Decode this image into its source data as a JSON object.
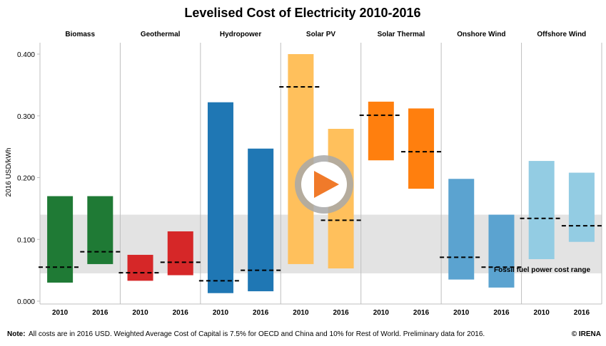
{
  "chart_data": {
    "type": "bar",
    "title": "Levelised Cost of Electricity 2010-2016",
    "ylabel": "2016 USD/kWh",
    "ylim": [
      0,
      0.42
    ],
    "yticks": [
      "0.000",
      "0.100",
      "0.200",
      "0.300",
      "0.400"
    ],
    "ytick_values": [
      0,
      0.1,
      0.2,
      0.3,
      0.4
    ],
    "band": {
      "min": 0.045,
      "max": 0.14,
      "label": "Fossil fuel power cost range"
    },
    "groups": [
      {
        "name": "Biomass",
        "color": "#1f7a35",
        "bars": [
          {
            "year": "2010",
            "min": 0.03,
            "max": 0.17,
            "avg": 0.055
          },
          {
            "year": "2016",
            "min": 0.06,
            "max": 0.17,
            "avg": 0.08
          }
        ]
      },
      {
        "name": "Geothermal",
        "color": "#d62728",
        "bars": [
          {
            "year": "2010",
            "min": 0.033,
            "max": 0.075,
            "avg": 0.046
          },
          {
            "year": "2016",
            "min": 0.042,
            "max": 0.113,
            "avg": 0.063
          }
        ]
      },
      {
        "name": "Hydropower",
        "color": "#1f77b4",
        "bars": [
          {
            "year": "2010",
            "min": 0.013,
            "max": 0.322,
            "avg": 0.033
          },
          {
            "year": "2016",
            "min": 0.016,
            "max": 0.247,
            "avg": 0.05
          }
        ]
      },
      {
        "name": "Solar PV",
        "color": "#ffc05c",
        "bars": [
          {
            "year": "2010",
            "min": 0.06,
            "max": 0.4,
            "avg": 0.347
          },
          {
            "year": "2016",
            "min": 0.053,
            "max": 0.279,
            "avg": 0.131
          }
        ]
      },
      {
        "name": "Solar Thermal",
        "color": "#ff7f0e",
        "bars": [
          {
            "year": "2010",
            "min": 0.228,
            "max": 0.323,
            "avg": 0.301
          },
          {
            "year": "2016",
            "min": 0.182,
            "max": 0.312,
            "avg": 0.242
          }
        ]
      },
      {
        "name": "Onshore Wind",
        "color": "#5ba3d0",
        "bars": [
          {
            "year": "2010",
            "min": 0.035,
            "max": 0.198,
            "avg": 0.071
          },
          {
            "year": "2016",
            "min": 0.022,
            "max": 0.14,
            "avg": 0.055
          }
        ]
      },
      {
        "name": "Offshore Wind",
        "color": "#93cce3",
        "bars": [
          {
            "year": "2010",
            "min": 0.068,
            "max": 0.227,
            "avg": 0.134
          },
          {
            "year": "2016",
            "min": 0.096,
            "max": 0.208,
            "avg": 0.122
          }
        ]
      }
    ]
  },
  "note": {
    "label": "Note:",
    "text": "All costs are in 2016 USD. Weighted Average Cost of Capital is 7.5% for OECD and China and 10% for Rest of World. Preliminary data for 2016."
  },
  "credit": "© IRENA",
  "overlay": {
    "icon": "play-icon"
  }
}
